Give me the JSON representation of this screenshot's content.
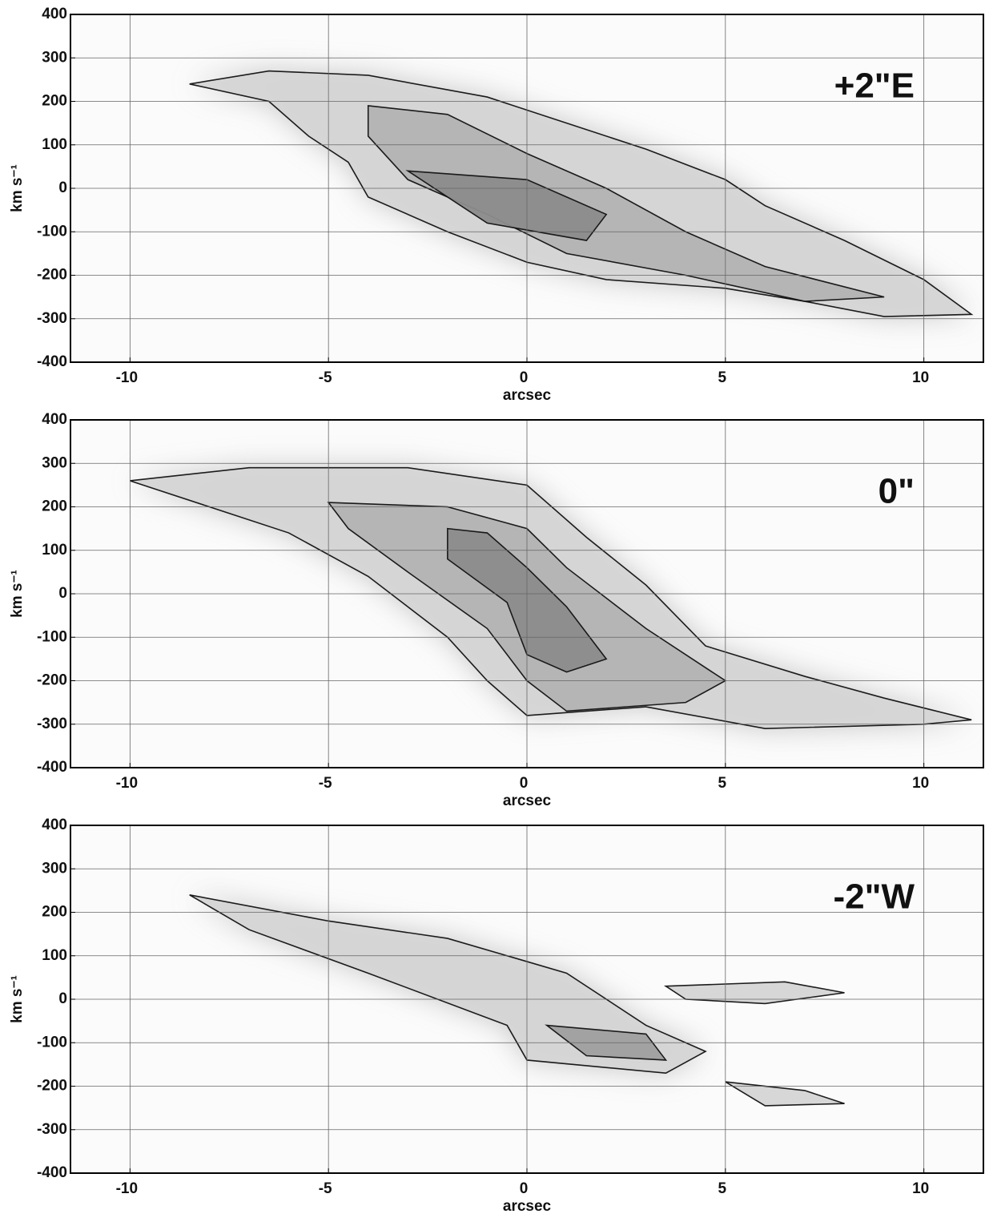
{
  "chart_data": [
    {
      "type": "contour",
      "annotation": "+2\"E",
      "xlabel": "arcsec",
      "ylabel": "km s⁻¹",
      "xlim": [
        -11.5,
        11.5
      ],
      "ylim": [
        -400,
        400
      ],
      "xticks": [
        -10,
        -5,
        0,
        5,
        10
      ],
      "yticks": [
        -400,
        -300,
        -200,
        -100,
        0,
        100,
        200,
        300,
        400
      ],
      "grid": true
    },
    {
      "type": "contour",
      "annotation": "0\"",
      "xlabel": "arcsec",
      "ylabel": "km s⁻¹",
      "xlim": [
        -11.5,
        11.5
      ],
      "ylim": [
        -400,
        400
      ],
      "xticks": [
        -10,
        -5,
        0,
        5,
        10
      ],
      "yticks": [
        -400,
        -300,
        -200,
        -100,
        0,
        100,
        200,
        300,
        400
      ],
      "grid": true
    },
    {
      "type": "contour",
      "annotation": "-2\"W",
      "xlabel": "arcsec",
      "ylabel": "km s⁻¹",
      "xlim": [
        -11.5,
        11.5
      ],
      "ylim": [
        -400,
        400
      ],
      "xticks": [
        -10,
        -5,
        0,
        5,
        10
      ],
      "yticks": [
        -400,
        -300,
        -200,
        -100,
        0,
        100,
        200,
        300,
        400
      ],
      "grid": true
    }
  ]
}
